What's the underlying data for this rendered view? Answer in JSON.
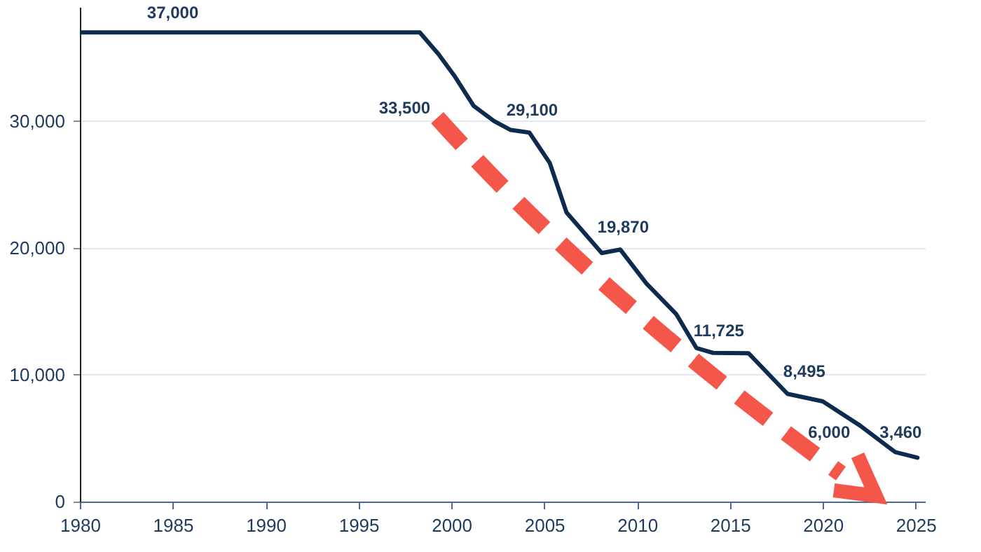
{
  "chart_data": {
    "type": "line",
    "x": [
      1980,
      1998.3,
      1999.3,
      2000.2,
      2001.2,
      2002.3,
      2003.2,
      2004.2,
      2005.3,
      2006.2,
      2008.1,
      2009.1,
      2010.5,
      2012.1,
      2013.2,
      2014.1,
      2016.0,
      2018.1,
      2020.0,
      2022.0,
      2023.9,
      2025.1
    ],
    "series": [
      {
        "color": "#0d2b4e",
        "values": [
          37000,
          37000,
          35300,
          33500,
          31200,
          30000,
          29300,
          29100,
          26700,
          22800,
          19600,
          19870,
          17200,
          14800,
          12100,
          11725,
          11700,
          8495,
          7900,
          6000,
          3900,
          3460
        ]
      }
    ],
    "xlim": [
      1980,
      2025.5
    ],
    "xticks": [
      1980,
      1985,
      1990,
      1995,
      2000,
      2005,
      2010,
      2015,
      2020,
      2025
    ],
    "ylim": [
      0,
      39000
    ],
    "yticks": [
      0,
      {
        "value": 10000,
        "label": "10,000"
      },
      {
        "value": 20000,
        "label": "20,000"
      },
      {
        "value": 30000,
        "label": "30,000"
      }
    ],
    "grid": "y",
    "line_style": "solid",
    "marker": "none",
    "annotations": [
      {
        "text": "37,000",
        "x": 1985,
        "y": 37000
      },
      {
        "text": "33,500",
        "x": 2000.2,
        "y": 33500
      },
      {
        "text": "29,100",
        "x": 2004.2,
        "y": 29100
      },
      {
        "text": "19,870",
        "x": 2009.1,
        "y": 19870
      },
      {
        "text": "11,725",
        "x": 2014.1,
        "y": 11725
      },
      {
        "text": "8,495",
        "x": 2018.1,
        "y": 8495
      },
      {
        "text": "6,000",
        "x": 2022.0,
        "y": 6000
      },
      {
        "text": "3,460",
        "x": 2025.1,
        "y": 3460
      }
    ]
  }
}
